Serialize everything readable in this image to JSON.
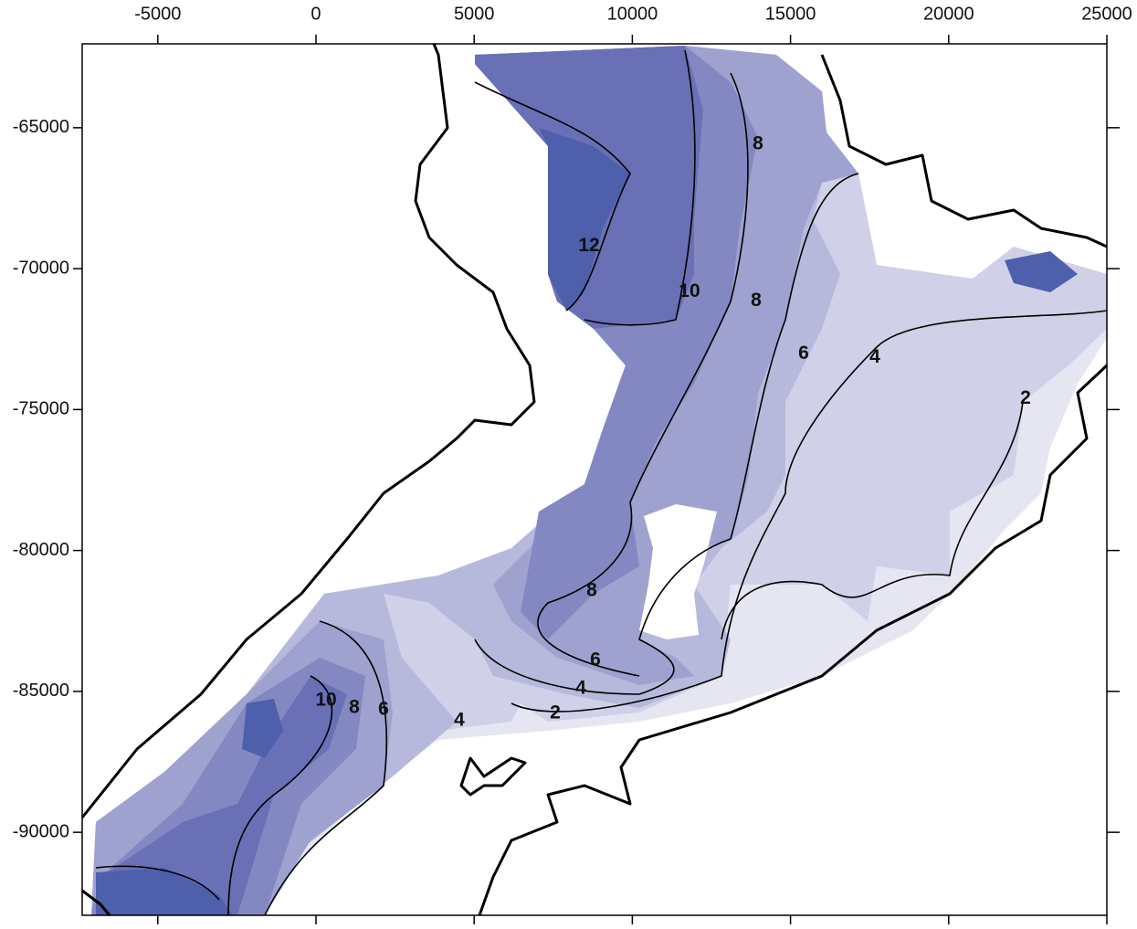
{
  "map": {
    "xlim": [
      -7390,
      25000
    ],
    "ylim": [
      -92945,
      -62023
    ],
    "xticks": [
      -5000,
      0,
      5000,
      10000,
      15000,
      20000,
      25000
    ],
    "yticks": [
      -65000,
      -70000,
      -75000,
      -80000,
      -85000,
      -90000
    ],
    "contour_labels": [
      {
        "value": 12,
        "x": 8632,
        "y": -69207
      },
      {
        "value": 10,
        "x": 11807,
        "y": -70825
      },
      {
        "value": 8,
        "x": 13972,
        "y": -65583
      },
      {
        "value": 8,
        "x": 13915,
        "y": -71149
      },
      {
        "value": 6,
        "x": 15416,
        "y": -73026
      },
      {
        "value": 4,
        "x": 17667,
        "y": -73155
      },
      {
        "value": 2,
        "x": 22430,
        "y": -74612
      },
      {
        "value": 8,
        "x": 8718,
        "y": -81440
      },
      {
        "value": 6,
        "x": 8834,
        "y": -83900
      },
      {
        "value": 4,
        "x": 8372,
        "y": -84903
      },
      {
        "value": 2,
        "x": 7564,
        "y": -85777
      },
      {
        "value": 4,
        "x": 4532,
        "y": -86036
      },
      {
        "value": 10,
        "x": 318,
        "y": -85324
      },
      {
        "value": 8,
        "x": 1212,
        "y": -85583
      },
      {
        "value": 6,
        "x": 2136,
        "y": -85647
      }
    ]
  }
}
